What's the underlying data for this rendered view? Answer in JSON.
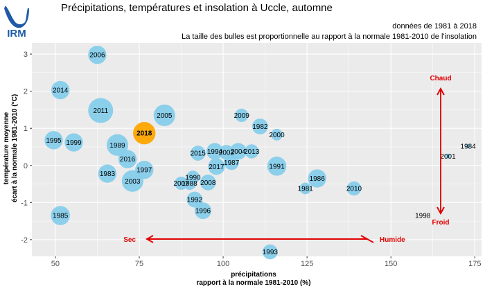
{
  "header": {
    "logo_text": "IRM",
    "title": "Précipitations, températures et insolation à Uccle, automne",
    "subtitle_period": "données de 1981 à 2018",
    "subtitle_bubbles": "La taille des bulles est proportionnelle au rapport à la normale 1981-2010 de l'insolation"
  },
  "colors": {
    "bubble": "#87ceeb",
    "highlight": "#ffa500",
    "panel": "#ebebeb",
    "grid": "#ffffff",
    "annotation": "#e00000"
  },
  "chart_data": {
    "type": "scatter",
    "xlabel_line1": "précipitations",
    "xlabel_line2": "rapport à la normale 1981-2010 (%)",
    "ylabel_line1": "température moyenne",
    "ylabel_line2": "écart à la normale 1981-2010 (°C)",
    "xlim": [
      43,
      177
    ],
    "ylim": [
      -2.45,
      3.3
    ],
    "xticks": [
      50,
      75,
      100,
      125,
      150,
      175
    ],
    "yticks": [
      -2,
      -1,
      0,
      1,
      2,
      3
    ],
    "grid": true,
    "highlight": "2018",
    "points": [
      {
        "label": "2006",
        "x": 62.5,
        "y": 2.98,
        "sunshine": 1.1
      },
      {
        "label": "2014",
        "x": 51.5,
        "y": 2.03,
        "sunshine": 1.1
      },
      {
        "label": "2011",
        "x": 63.5,
        "y": 1.48,
        "sunshine": 1.5
      },
      {
        "label": "2005",
        "x": 82.5,
        "y": 1.35,
        "sunshine": 1.3
      },
      {
        "label": "2009",
        "x": 105.5,
        "y": 1.35,
        "sunshine": 0.8
      },
      {
        "label": "1982",
        "x": 111.0,
        "y": 1.05,
        "sunshine": 0.95
      },
      {
        "label": "2000",
        "x": 116.0,
        "y": 0.83,
        "sunshine": 0.7
      },
      {
        "label": "2018",
        "x": 76.5,
        "y": 0.87,
        "sunshine": 1.35
      },
      {
        "label": "1995",
        "x": 49.5,
        "y": 0.68,
        "sunshine": 1.1
      },
      {
        "label": "1999",
        "x": 55.5,
        "y": 0.62,
        "sunshine": 1.1
      },
      {
        "label": "1989",
        "x": 68.5,
        "y": 0.55,
        "sunshine": 1.3
      },
      {
        "label": "1984",
        "x": 173.0,
        "y": 0.52,
        "sunshine": 0.3
      },
      {
        "label": "2015",
        "x": 92.5,
        "y": 0.33,
        "sunshine": 0.9
      },
      {
        "label": "1994",
        "x": 97.5,
        "y": 0.38,
        "sunshine": 1.0
      },
      {
        "label": "2002",
        "x": 101.0,
        "y": 0.35,
        "sunshine": 0.9
      },
      {
        "label": "2004",
        "x": 104.5,
        "y": 0.38,
        "sunshine": 1.0
      },
      {
        "label": "2013",
        "x": 108.5,
        "y": 0.38,
        "sunshine": 0.85
      },
      {
        "label": "2001",
        "x": 167.0,
        "y": 0.25,
        "sunshine": 0.3
      },
      {
        "label": "2016",
        "x": 71.5,
        "y": 0.17,
        "sunshine": 1.1
      },
      {
        "label": "1987",
        "x": 102.5,
        "y": 0.08,
        "sunshine": 0.9
      },
      {
        "label": "2017",
        "x": 98.0,
        "y": -0.03,
        "sunshine": 1.0
      },
      {
        "label": "1991",
        "x": 116.0,
        "y": -0.02,
        "sunshine": 1.15
      },
      {
        "label": "1997",
        "x": 76.5,
        "y": -0.12,
        "sunshine": 1.1
      },
      {
        "label": "1983",
        "x": 65.5,
        "y": -0.22,
        "sunshine": 1.1
      },
      {
        "label": "1990",
        "x": 91.0,
        "y": -0.32,
        "sunshine": 0.8
      },
      {
        "label": "2003",
        "x": 73.0,
        "y": -0.42,
        "sunshine": 1.3
      },
      {
        "label": "1986",
        "x": 128.0,
        "y": -0.35,
        "sunshine": 1.1
      },
      {
        "label": "2007",
        "x": 87.5,
        "y": -0.48,
        "sunshine": 0.8
      },
      {
        "label": "1988",
        "x": 90.0,
        "y": -0.48,
        "sunshine": 0.8
      },
      {
        "label": "2008",
        "x": 95.5,
        "y": -0.46,
        "sunshine": 0.95
      },
      {
        "label": "1981",
        "x": 124.5,
        "y": -0.62,
        "sunshine": 0.7
      },
      {
        "label": "2010",
        "x": 139.0,
        "y": -0.62,
        "sunshine": 0.85
      },
      {
        "label": "1992",
        "x": 91.5,
        "y": -0.92,
        "sunshine": 0.95
      },
      {
        "label": "1996",
        "x": 94.0,
        "y": -1.22,
        "sunshine": 1.0
      },
      {
        "label": "1985",
        "x": 51.5,
        "y": -1.35,
        "sunshine": 1.15
      },
      {
        "label": "1998",
        "x": 159.5,
        "y": -1.35,
        "sunshine": 0.2
      },
      {
        "label": "1993",
        "x": 114.0,
        "y": -2.33,
        "sunshine": 0.9
      }
    ],
    "annotations": {
      "hot": "Chaud",
      "cold": "Froid",
      "dry": "Sec",
      "wet": "Humide"
    }
  }
}
